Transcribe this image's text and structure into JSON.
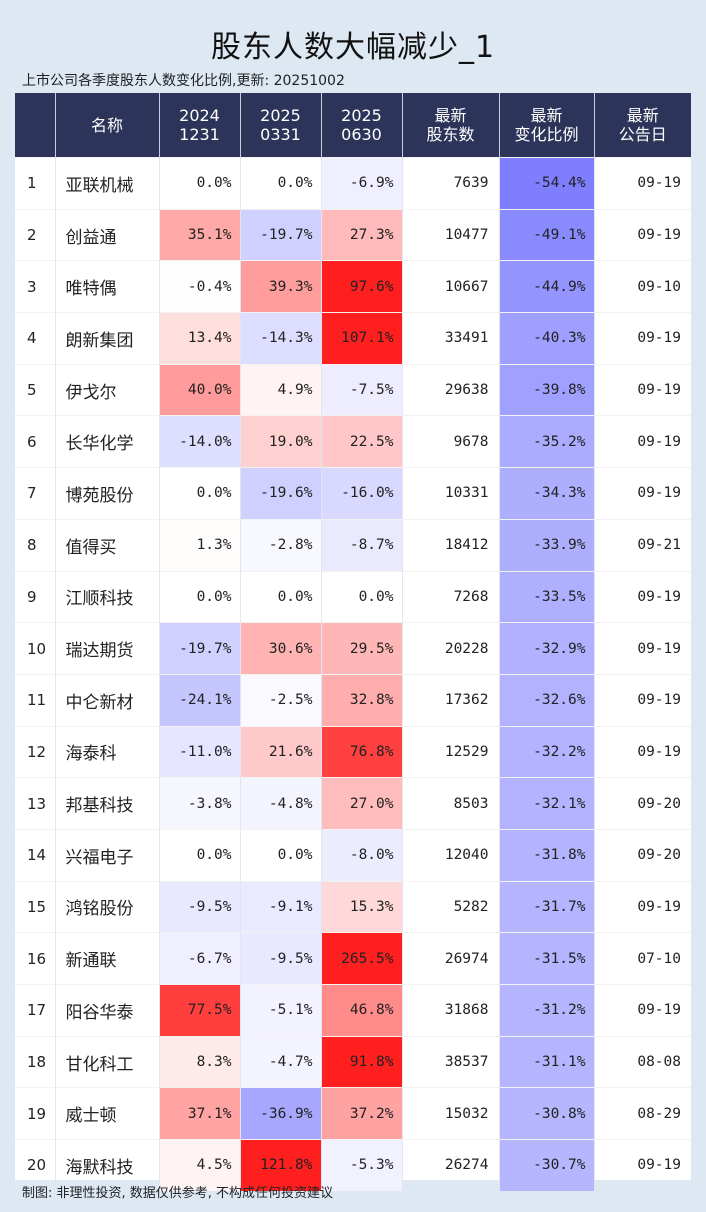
{
  "title": "股东人数大幅减少_1",
  "subtitle": "上市公司各季度股东人数变化比例,更新: 20251002",
  "footer": "制图: 非理性投资, 数据仅供参考, 不构成任何投资建议",
  "chart_data": {
    "type": "table",
    "columns": [
      {
        "key": "idx",
        "label": ""
      },
      {
        "key": "name",
        "label": "名称"
      },
      {
        "key": "q20241231",
        "label": "2024\n1231"
      },
      {
        "key": "q20250331",
        "label": "2025\n0331"
      },
      {
        "key": "q20250630",
        "label": "2025\n0630"
      },
      {
        "key": "holders",
        "label": "最新\n股东数"
      },
      {
        "key": "change",
        "label": "最新\n变化比例"
      },
      {
        "key": "date",
        "label": "最新\n公告日"
      }
    ],
    "rows": [
      {
        "idx": 1,
        "name": "亚联机械",
        "q20241231": 0.0,
        "q20250331": 0.0,
        "q20250630": -6.9,
        "holders": 7639,
        "change": -54.4,
        "date": "09-19"
      },
      {
        "idx": 2,
        "name": "创益通",
        "q20241231": 35.1,
        "q20250331": -19.7,
        "q20250630": 27.3,
        "holders": 10477,
        "change": -49.1,
        "date": "09-19"
      },
      {
        "idx": 3,
        "name": "唯特偶",
        "q20241231": -0.4,
        "q20250331": 39.3,
        "q20250630": 97.6,
        "holders": 10667,
        "change": -44.9,
        "date": "09-10"
      },
      {
        "idx": 4,
        "name": "朗新集团",
        "q20241231": 13.4,
        "q20250331": -14.3,
        "q20250630": 107.1,
        "holders": 33491,
        "change": -40.3,
        "date": "09-19"
      },
      {
        "idx": 5,
        "name": "伊戈尔",
        "q20241231": 40.0,
        "q20250331": 4.9,
        "q20250630": -7.5,
        "holders": 29638,
        "change": -39.8,
        "date": "09-19"
      },
      {
        "idx": 6,
        "name": "长华化学",
        "q20241231": -14.0,
        "q20250331": 19.0,
        "q20250630": 22.5,
        "holders": 9678,
        "change": -35.2,
        "date": "09-19"
      },
      {
        "idx": 7,
        "name": "博苑股份",
        "q20241231": 0.0,
        "q20250331": -19.6,
        "q20250630": -16.0,
        "holders": 10331,
        "change": -34.3,
        "date": "09-19"
      },
      {
        "idx": 8,
        "name": "值得买",
        "q20241231": 1.3,
        "q20250331": -2.8,
        "q20250630": -8.7,
        "holders": 18412,
        "change": -33.9,
        "date": "09-21"
      },
      {
        "idx": 9,
        "name": "江顺科技",
        "q20241231": 0.0,
        "q20250331": 0.0,
        "q20250630": 0.0,
        "holders": 7268,
        "change": -33.5,
        "date": "09-19"
      },
      {
        "idx": 10,
        "name": "瑞达期货",
        "q20241231": -19.7,
        "q20250331": 30.6,
        "q20250630": 29.5,
        "holders": 20228,
        "change": -32.9,
        "date": "09-19"
      },
      {
        "idx": 11,
        "name": "中仑新材",
        "q20241231": -24.1,
        "q20250331": -2.5,
        "q20250630": 32.8,
        "holders": 17362,
        "change": -32.6,
        "date": "09-19"
      },
      {
        "idx": 12,
        "name": "海泰科",
        "q20241231": -11.0,
        "q20250331": 21.6,
        "q20250630": 76.8,
        "holders": 12529,
        "change": -32.2,
        "date": "09-19"
      },
      {
        "idx": 13,
        "name": "邦基科技",
        "q20241231": -3.8,
        "q20250331": -4.8,
        "q20250630": 27.0,
        "holders": 8503,
        "change": -32.1,
        "date": "09-20"
      },
      {
        "idx": 14,
        "name": "兴福电子",
        "q20241231": 0.0,
        "q20250331": 0.0,
        "q20250630": -8.0,
        "holders": 12040,
        "change": -31.8,
        "date": "09-20"
      },
      {
        "idx": 15,
        "name": "鸿铭股份",
        "q20241231": -9.5,
        "q20250331": -9.1,
        "q20250630": 15.3,
        "holders": 5282,
        "change": -31.7,
        "date": "09-19"
      },
      {
        "idx": 16,
        "name": "新通联",
        "q20241231": -6.7,
        "q20250331": -9.5,
        "q20250630": 265.5,
        "holders": 26974,
        "change": -31.5,
        "date": "07-10"
      },
      {
        "idx": 17,
        "name": "阳谷华泰",
        "q20241231": 77.5,
        "q20250331": -5.1,
        "q20250630": 46.8,
        "holders": 31868,
        "change": -31.2,
        "date": "09-19"
      },
      {
        "idx": 18,
        "name": "甘化科工",
        "q20241231": 8.3,
        "q20250331": -4.7,
        "q20250630": 91.8,
        "holders": 38537,
        "change": -31.1,
        "date": "08-08"
      },
      {
        "idx": 19,
        "name": "威士顿",
        "q20241231": 37.1,
        "q20250331": -36.9,
        "q20250630": 37.2,
        "holders": 15032,
        "change": -30.8,
        "date": "08-29"
      },
      {
        "idx": 20,
        "name": "海默科技",
        "q20241231": 4.5,
        "q20250331": 121.8,
        "q20250630": -5.3,
        "holders": 26274,
        "change": -30.7,
        "date": "09-19"
      }
    ],
    "colors": {
      "header_bg": "#2d3459",
      "positive": "#ff1f1f",
      "negative": "#7a7aff",
      "neutral": "#ffffff",
      "page_bg": "#dde8f3"
    },
    "color_scale": {
      "positive_saturate_at": 90,
      "negative_saturate_at": 56
    }
  }
}
